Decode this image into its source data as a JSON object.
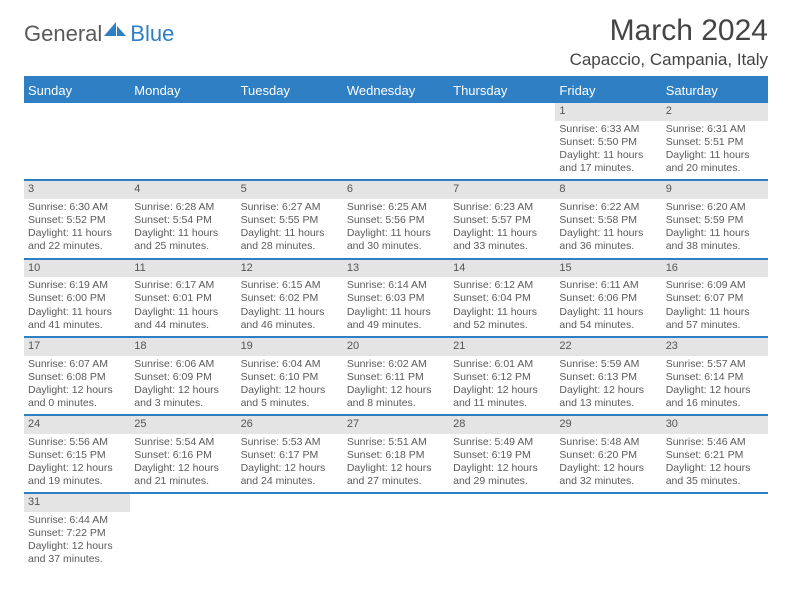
{
  "brand": {
    "text1": "General",
    "text2": "Blue"
  },
  "title": "March 2024",
  "location": "Capaccio, Campania, Italy",
  "colors": {
    "accent": "#2f7fc4",
    "header_bg": "#2f7fc4",
    "daynum_bg": "#e4e4e4",
    "text": "#5a5a5a"
  },
  "days_of_week": [
    "Sunday",
    "Monday",
    "Tuesday",
    "Wednesday",
    "Thursday",
    "Friday",
    "Saturday"
  ],
  "weeks": [
    [
      null,
      null,
      null,
      null,
      null,
      {
        "n": "1",
        "sr": "Sunrise: 6:33 AM",
        "ss": "Sunset: 5:50 PM",
        "dl": "Daylight: 11 hours and 17 minutes."
      },
      {
        "n": "2",
        "sr": "Sunrise: 6:31 AM",
        "ss": "Sunset: 5:51 PM",
        "dl": "Daylight: 11 hours and 20 minutes."
      }
    ],
    [
      {
        "n": "3",
        "sr": "Sunrise: 6:30 AM",
        "ss": "Sunset: 5:52 PM",
        "dl": "Daylight: 11 hours and 22 minutes."
      },
      {
        "n": "4",
        "sr": "Sunrise: 6:28 AM",
        "ss": "Sunset: 5:54 PM",
        "dl": "Daylight: 11 hours and 25 minutes."
      },
      {
        "n": "5",
        "sr": "Sunrise: 6:27 AM",
        "ss": "Sunset: 5:55 PM",
        "dl": "Daylight: 11 hours and 28 minutes."
      },
      {
        "n": "6",
        "sr": "Sunrise: 6:25 AM",
        "ss": "Sunset: 5:56 PM",
        "dl": "Daylight: 11 hours and 30 minutes."
      },
      {
        "n": "7",
        "sr": "Sunrise: 6:23 AM",
        "ss": "Sunset: 5:57 PM",
        "dl": "Daylight: 11 hours and 33 minutes."
      },
      {
        "n": "8",
        "sr": "Sunrise: 6:22 AM",
        "ss": "Sunset: 5:58 PM",
        "dl": "Daylight: 11 hours and 36 minutes."
      },
      {
        "n": "9",
        "sr": "Sunrise: 6:20 AM",
        "ss": "Sunset: 5:59 PM",
        "dl": "Daylight: 11 hours and 38 minutes."
      }
    ],
    [
      {
        "n": "10",
        "sr": "Sunrise: 6:19 AM",
        "ss": "Sunset: 6:00 PM",
        "dl": "Daylight: 11 hours and 41 minutes."
      },
      {
        "n": "11",
        "sr": "Sunrise: 6:17 AM",
        "ss": "Sunset: 6:01 PM",
        "dl": "Daylight: 11 hours and 44 minutes."
      },
      {
        "n": "12",
        "sr": "Sunrise: 6:15 AM",
        "ss": "Sunset: 6:02 PM",
        "dl": "Daylight: 11 hours and 46 minutes."
      },
      {
        "n": "13",
        "sr": "Sunrise: 6:14 AM",
        "ss": "Sunset: 6:03 PM",
        "dl": "Daylight: 11 hours and 49 minutes."
      },
      {
        "n": "14",
        "sr": "Sunrise: 6:12 AM",
        "ss": "Sunset: 6:04 PM",
        "dl": "Daylight: 11 hours and 52 minutes."
      },
      {
        "n": "15",
        "sr": "Sunrise: 6:11 AM",
        "ss": "Sunset: 6:06 PM",
        "dl": "Daylight: 11 hours and 54 minutes."
      },
      {
        "n": "16",
        "sr": "Sunrise: 6:09 AM",
        "ss": "Sunset: 6:07 PM",
        "dl": "Daylight: 11 hours and 57 minutes."
      }
    ],
    [
      {
        "n": "17",
        "sr": "Sunrise: 6:07 AM",
        "ss": "Sunset: 6:08 PM",
        "dl": "Daylight: 12 hours and 0 minutes."
      },
      {
        "n": "18",
        "sr": "Sunrise: 6:06 AM",
        "ss": "Sunset: 6:09 PM",
        "dl": "Daylight: 12 hours and 3 minutes."
      },
      {
        "n": "19",
        "sr": "Sunrise: 6:04 AM",
        "ss": "Sunset: 6:10 PM",
        "dl": "Daylight: 12 hours and 5 minutes."
      },
      {
        "n": "20",
        "sr": "Sunrise: 6:02 AM",
        "ss": "Sunset: 6:11 PM",
        "dl": "Daylight: 12 hours and 8 minutes."
      },
      {
        "n": "21",
        "sr": "Sunrise: 6:01 AM",
        "ss": "Sunset: 6:12 PM",
        "dl": "Daylight: 12 hours and 11 minutes."
      },
      {
        "n": "22",
        "sr": "Sunrise: 5:59 AM",
        "ss": "Sunset: 6:13 PM",
        "dl": "Daylight: 12 hours and 13 minutes."
      },
      {
        "n": "23",
        "sr": "Sunrise: 5:57 AM",
        "ss": "Sunset: 6:14 PM",
        "dl": "Daylight: 12 hours and 16 minutes."
      }
    ],
    [
      {
        "n": "24",
        "sr": "Sunrise: 5:56 AM",
        "ss": "Sunset: 6:15 PM",
        "dl": "Daylight: 12 hours and 19 minutes."
      },
      {
        "n": "25",
        "sr": "Sunrise: 5:54 AM",
        "ss": "Sunset: 6:16 PM",
        "dl": "Daylight: 12 hours and 21 minutes."
      },
      {
        "n": "26",
        "sr": "Sunrise: 5:53 AM",
        "ss": "Sunset: 6:17 PM",
        "dl": "Daylight: 12 hours and 24 minutes."
      },
      {
        "n": "27",
        "sr": "Sunrise: 5:51 AM",
        "ss": "Sunset: 6:18 PM",
        "dl": "Daylight: 12 hours and 27 minutes."
      },
      {
        "n": "28",
        "sr": "Sunrise: 5:49 AM",
        "ss": "Sunset: 6:19 PM",
        "dl": "Daylight: 12 hours and 29 minutes."
      },
      {
        "n": "29",
        "sr": "Sunrise: 5:48 AM",
        "ss": "Sunset: 6:20 PM",
        "dl": "Daylight: 12 hours and 32 minutes."
      },
      {
        "n": "30",
        "sr": "Sunrise: 5:46 AM",
        "ss": "Sunset: 6:21 PM",
        "dl": "Daylight: 12 hours and 35 minutes."
      }
    ],
    [
      {
        "n": "31",
        "sr": "Sunrise: 6:44 AM",
        "ss": "Sunset: 7:22 PM",
        "dl": "Daylight: 12 hours and 37 minutes."
      },
      null,
      null,
      null,
      null,
      null,
      null
    ]
  ]
}
